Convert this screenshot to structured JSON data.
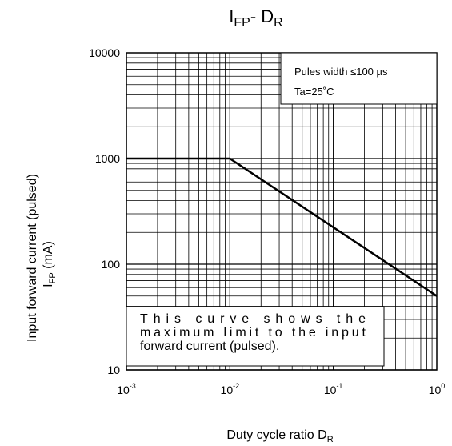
{
  "chart_data": {
    "type": "line",
    "title": {
      "main_1": "I",
      "sub_1": "FP",
      "mid": "- D",
      "sub_2": "R"
    },
    "xlabel": {
      "text": "Duty cycle ratio   D",
      "sub": "R"
    },
    "ylabel": {
      "line1": "Input forward current (pulsed)",
      "line2_main": "I",
      "line2_sub": "FP",
      "line2_tail": "   (mA)"
    },
    "x_scale": "log",
    "y_scale": "log",
    "xlim": [
      0.001,
      1
    ],
    "ylim": [
      10,
      10000
    ],
    "grid": true,
    "x_ticks": [
      {
        "value": 0.001,
        "base": "10",
        "exp": "-3"
      },
      {
        "value": 0.01,
        "base": "10",
        "exp": "-2"
      },
      {
        "value": 0.1,
        "base": "10",
        "exp": "-1"
      },
      {
        "value": 1,
        "base": "10",
        "exp": "0"
      }
    ],
    "y_ticks": [
      {
        "value": 10,
        "label": "10"
      },
      {
        "value": 100,
        "label": "100"
      },
      {
        "value": 1000,
        "label": "1000"
      },
      {
        "value": 10000,
        "label": "10000"
      }
    ],
    "series": [
      {
        "x": [
          0.001,
          0.01,
          1
        ],
        "y": [
          1000,
          1000,
          50
        ]
      }
    ],
    "conditions_box": {
      "line1": "Pules width ≤100 µs",
      "line2": "Ta=25˚C",
      "placement": "top-right"
    },
    "note_box": {
      "lines": [
        "This curve shows the",
        "maximum limit to the input",
        "forward current (pulsed)."
      ],
      "placement": "bottom-left"
    }
  },
  "colors": {
    "line": "#000000",
    "grid": "#000000",
    "background": "#ffffff"
  }
}
